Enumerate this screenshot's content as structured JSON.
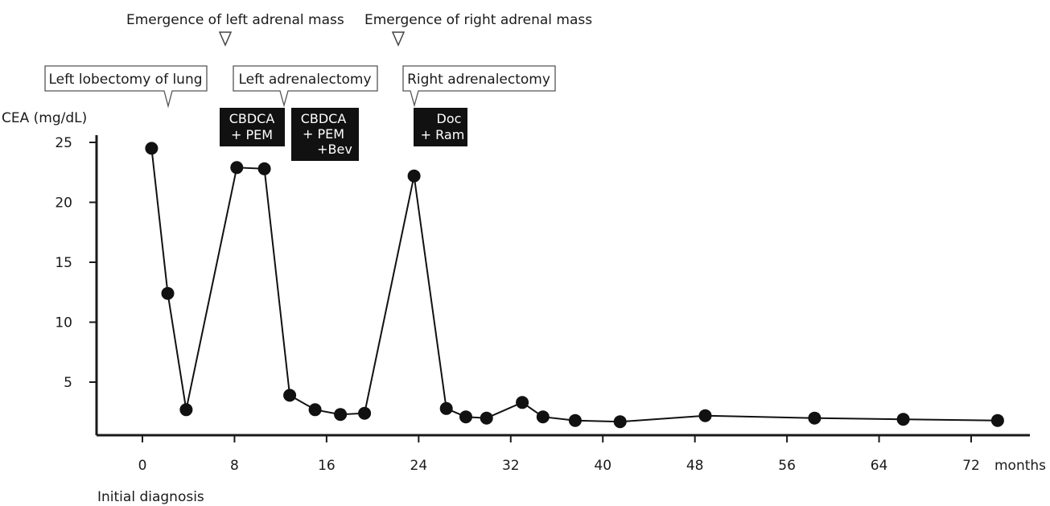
{
  "chart_data": {
    "type": "line",
    "ylabel": "CEA (mg/dL)",
    "xlabel": "months",
    "x_origin_label": "Initial diagnosis",
    "ylim": [
      0,
      26
    ],
    "xlim": [
      -4,
      78.5
    ],
    "x_ticks": [
      0,
      8,
      16,
      24,
      32,
      40,
      48,
      56,
      64,
      72
    ],
    "y_ticks": [
      5,
      10,
      15,
      20,
      25
    ],
    "grid": false,
    "series": [
      {
        "points": [
          [
            0.8,
            24.5
          ],
          [
            2.2,
            12.4
          ],
          [
            3.8,
            2.7
          ],
          [
            8.2,
            22.9
          ],
          [
            10.6,
            22.8
          ],
          [
            12.8,
            3.9
          ],
          [
            15.0,
            2.7
          ],
          [
            17.2,
            2.3
          ],
          [
            19.3,
            2.4
          ],
          [
            23.6,
            22.2
          ],
          [
            26.4,
            2.8
          ],
          [
            28.1,
            2.1
          ],
          [
            29.9,
            2.0
          ],
          [
            33.0,
            3.3
          ],
          [
            34.8,
            2.1
          ],
          [
            37.6,
            1.8
          ],
          [
            41.5,
            1.7
          ],
          [
            48.9,
            2.2
          ],
          [
            58.4,
            2.0
          ],
          [
            66.1,
            1.9
          ],
          [
            74.3,
            1.8
          ]
        ]
      }
    ],
    "events": [
      {
        "label": "Emergence of left adrenal mass",
        "month": 7.7,
        "marker": "triangle-outline"
      },
      {
        "label": "Emergence of right adrenal mass",
        "month": 24.3,
        "marker": "triangle-outline"
      },
      {
        "label": "Left lobectomy of lung",
        "month": 2.6,
        "marker": "triangle-outline"
      },
      {
        "label": "Left adrenalectomy",
        "month": 13.8,
        "marker": "triangle-outline"
      },
      {
        "label": "Right adrenalectomy",
        "month": 26.0,
        "marker": "triangle-outline"
      }
    ],
    "treatments": [
      {
        "lines": [
          "CBDCA",
          "+ PEM"
        ]
      },
      {
        "lines": [
          "CBDCA",
          "+ PEM",
          "+Bev"
        ]
      },
      {
        "lines": [
          "Doc",
          "+ Ram"
        ]
      }
    ]
  }
}
